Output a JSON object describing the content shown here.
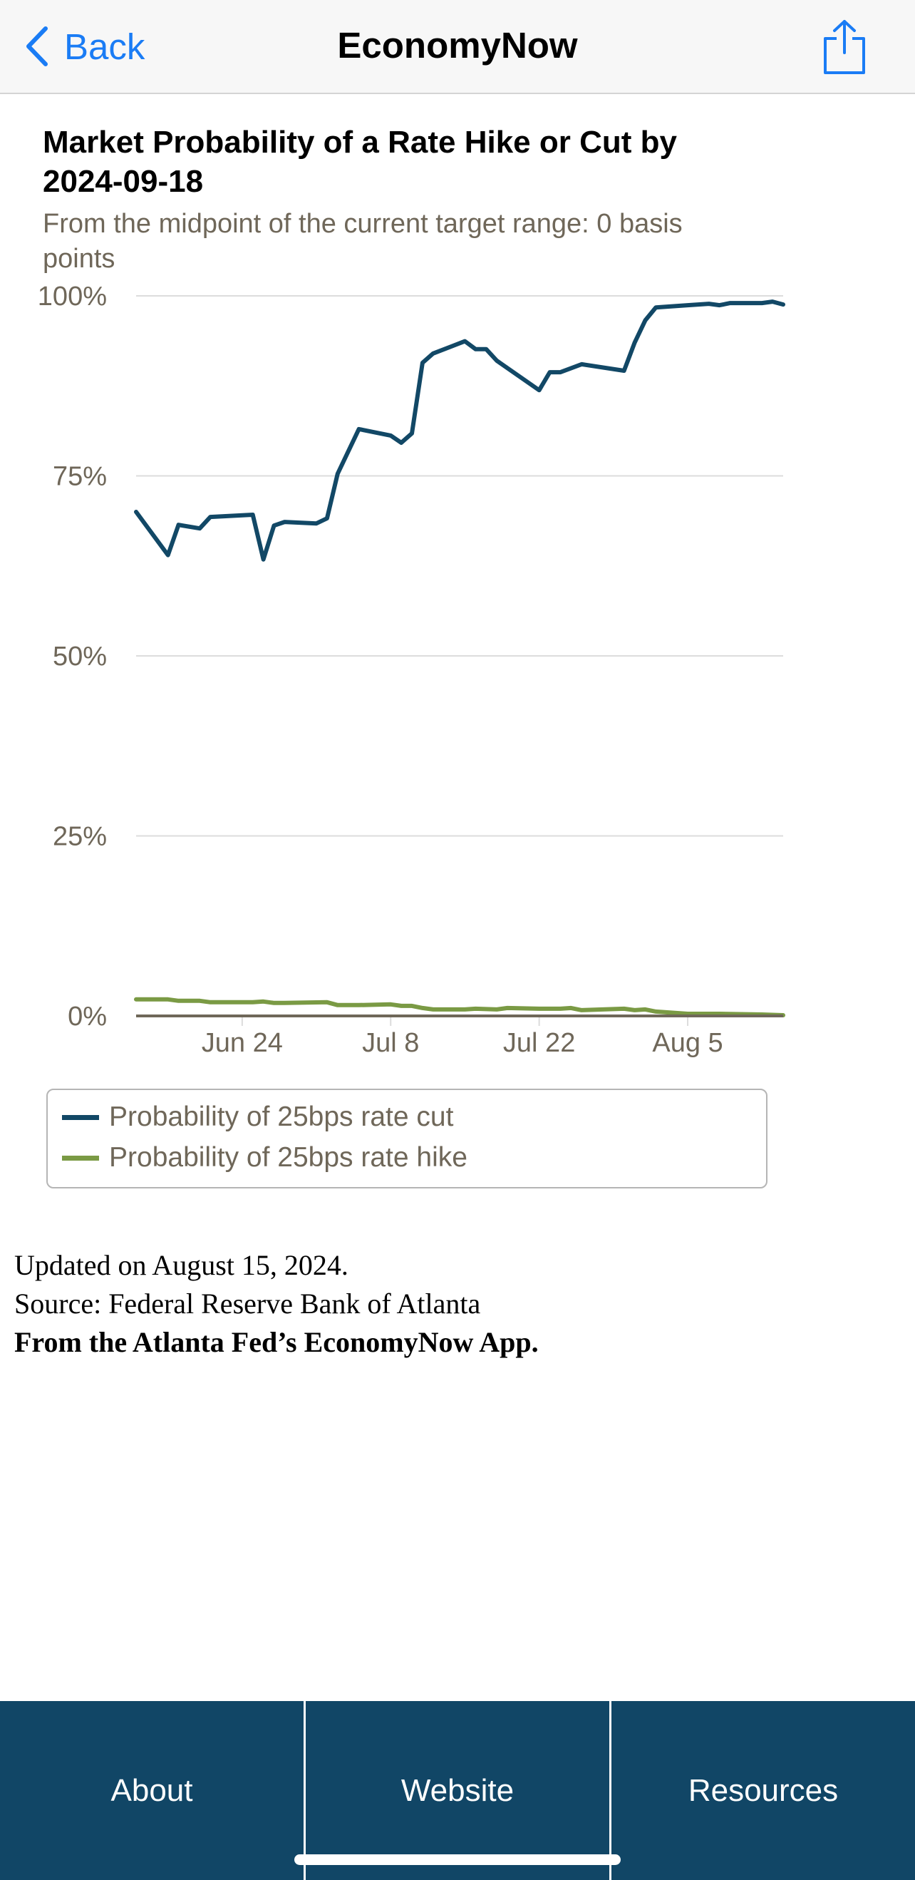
{
  "nav": {
    "back_label": "Back",
    "title": "EconomyNow",
    "accent_color": "#1a7cf5",
    "icons": {
      "back": "chevron-left-icon",
      "share": "share-icon"
    }
  },
  "chart_data": {
    "type": "line",
    "title": "Market Probability of a Rate Hike or Cut by 2024-09-18",
    "subtitle": "From the midpoint of the current target range: 0 basis points",
    "x_ticks": [
      "Jun 24",
      "Jul 8",
      "Jul 22",
      "Aug 5"
    ],
    "y_ticks": [
      "100%",
      "75%",
      "50%",
      "25%",
      "0%"
    ],
    "ylim": [
      0,
      100
    ],
    "xlim": [
      "2024-06-14",
      "2024-08-14"
    ],
    "grid": true,
    "legend_position": "bottom",
    "series": [
      {
        "name": "Probability of 25bps rate cut",
        "color": "#124866",
        "points": [
          [
            "2024-06-14",
            70.0
          ],
          [
            "2024-06-17",
            64.0
          ],
          [
            "2024-06-18",
            68.2
          ],
          [
            "2024-06-20",
            67.7
          ],
          [
            "2024-06-21",
            69.3
          ],
          [
            "2024-06-25",
            69.6
          ],
          [
            "2024-06-26",
            63.4
          ],
          [
            "2024-06-27",
            68.1
          ],
          [
            "2024-06-28",
            68.6
          ],
          [
            "2024-07-01",
            68.4
          ],
          [
            "2024-07-02",
            69.1
          ],
          [
            "2024-07-03",
            75.3
          ],
          [
            "2024-07-05",
            81.5
          ],
          [
            "2024-07-08",
            80.6
          ],
          [
            "2024-07-09",
            79.6
          ],
          [
            "2024-07-10",
            80.9
          ],
          [
            "2024-07-11",
            90.7
          ],
          [
            "2024-07-12",
            92.0
          ],
          [
            "2024-07-15",
            93.7
          ],
          [
            "2024-07-16",
            92.6
          ],
          [
            "2024-07-17",
            92.6
          ],
          [
            "2024-07-18",
            91.0
          ],
          [
            "2024-07-22",
            86.9
          ],
          [
            "2024-07-23",
            89.4
          ],
          [
            "2024-07-24",
            89.4
          ],
          [
            "2024-07-26",
            90.5
          ],
          [
            "2024-07-30",
            89.6
          ],
          [
            "2024-07-31",
            93.5
          ],
          [
            "2024-08-01",
            96.6
          ],
          [
            "2024-08-02",
            98.4
          ],
          [
            "2024-08-05",
            98.7
          ],
          [
            "2024-08-07",
            98.9
          ],
          [
            "2024-08-08",
            98.7
          ],
          [
            "2024-08-09",
            99.0
          ],
          [
            "2024-08-12",
            99.0
          ],
          [
            "2024-08-13",
            99.2
          ],
          [
            "2024-08-14",
            98.8
          ]
        ]
      },
      {
        "name": "Probability of 25bps rate hike",
        "color": "#7a9a44",
        "points": [
          [
            "2024-06-14",
            2.3
          ],
          [
            "2024-06-17",
            2.3
          ],
          [
            "2024-06-18",
            2.1
          ],
          [
            "2024-06-20",
            2.1
          ],
          [
            "2024-06-21",
            1.9
          ],
          [
            "2024-06-25",
            1.9
          ],
          [
            "2024-06-26",
            2.0
          ],
          [
            "2024-06-27",
            1.8
          ],
          [
            "2024-06-28",
            1.8
          ],
          [
            "2024-07-02",
            1.9
          ],
          [
            "2024-07-03",
            1.5
          ],
          [
            "2024-07-05",
            1.5
          ],
          [
            "2024-07-08",
            1.6
          ],
          [
            "2024-07-09",
            1.4
          ],
          [
            "2024-07-10",
            1.4
          ],
          [
            "2024-07-11",
            1.1
          ],
          [
            "2024-07-12",
            0.9
          ],
          [
            "2024-07-15",
            0.9
          ],
          [
            "2024-07-16",
            1.0
          ],
          [
            "2024-07-18",
            0.9
          ],
          [
            "2024-07-19",
            1.1
          ],
          [
            "2024-07-22",
            1.0
          ],
          [
            "2024-07-24",
            1.0
          ],
          [
            "2024-07-25",
            1.1
          ],
          [
            "2024-07-26",
            0.8
          ],
          [
            "2024-07-30",
            1.0
          ],
          [
            "2024-07-31",
            0.8
          ],
          [
            "2024-08-01",
            0.9
          ],
          [
            "2024-08-02",
            0.6
          ],
          [
            "2024-08-05",
            0.3
          ],
          [
            "2024-08-08",
            0.3
          ],
          [
            "2024-08-12",
            0.2
          ],
          [
            "2024-08-14",
            0.1
          ]
        ]
      }
    ]
  },
  "footnote": {
    "updated": "Updated on August 15, 2024.",
    "source": "Source: Federal Reserve Bank of Atlanta",
    "credit": "From the Atlanta Fed’s EconomyNow App."
  },
  "tabs": [
    {
      "label": "About"
    },
    {
      "label": "Website"
    },
    {
      "label": "Resources"
    }
  ],
  "colors": {
    "tabbar": "#114666",
    "gridline": "#dcdcdc",
    "axis": "#6f6759"
  }
}
